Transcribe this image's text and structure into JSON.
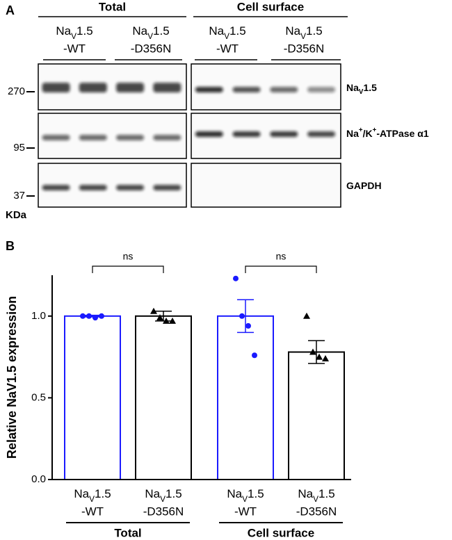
{
  "panel_labels": [
    "A",
    "B"
  ],
  "blot": {
    "groups": [
      {
        "title": "Total",
        "lanes": [
          {
            "name": [
              {
                "t": "Na"
              },
              {
                "t": "V",
                "sub": true
              },
              {
                "t": "1.5"
              }
            ],
            "variant": "-WT"
          },
          {
            "name": [
              {
                "t": "Na"
              },
              {
                "t": "V",
                "sub": true
              },
              {
                "t": "1.5"
              }
            ],
            "variant": "-D356N"
          }
        ]
      },
      {
        "title": "Cell surface",
        "lanes": [
          {
            "name": [
              {
                "t": "Na"
              },
              {
                "t": "V",
                "sub": true
              },
              {
                "t": "1.5"
              }
            ],
            "variant": "-WT"
          },
          {
            "name": [
              {
                "t": "Na"
              },
              {
                "t": "V",
                "sub": true
              },
              {
                "t": "1.5"
              }
            ],
            "variant": "-D356N"
          }
        ]
      }
    ],
    "rows": [
      [
        {
          "t": "Na"
        },
        {
          "t": "V",
          "sub": true
        },
        {
          "t": "1.5"
        }
      ],
      [
        {
          "t": "Na"
        },
        {
          "t": "+",
          "sup": true
        },
        {
          "t": "/K"
        },
        {
          "t": "+",
          "sup": true
        },
        {
          "t": "-ATPase α1"
        }
      ],
      [
        {
          "t": "GAPDH"
        }
      ]
    ],
    "markers": [
      "270",
      "95",
      "37"
    ],
    "unit": "KDa"
  },
  "chart_data": {
    "type": "bar",
    "ylabel": "Relative NaV1.5 expression",
    "categories": [
      {
        "name": [
          {
            "t": "Na"
          },
          {
            "t": "V",
            "sub": true
          },
          {
            "t": "1.5"
          }
        ],
        "variant": "-WT"
      },
      {
        "name": [
          {
            "t": "Na"
          },
          {
            "t": "V",
            "sub": true
          },
          {
            "t": "1.5"
          }
        ],
        "variant": "-D356N"
      },
      {
        "name": [
          {
            "t": "Na"
          },
          {
            "t": "V",
            "sub": true
          },
          {
            "t": "1.5"
          }
        ],
        "variant": "-WT"
      },
      {
        "name": [
          {
            "t": "Na"
          },
          {
            "t": "V",
            "sub": true
          },
          {
            "t": "1.5"
          }
        ],
        "variant": "-D356N"
      }
    ],
    "groups": [
      {
        "name": "Total",
        "annotation": "ns"
      },
      {
        "name": "Cell surface",
        "annotation": "ns"
      }
    ],
    "values": [
      1.0,
      1.0,
      1.0,
      0.78
    ],
    "errors": [
      0.005,
      0.03,
      0.1,
      0.07
    ],
    "points": [
      [
        1.0,
        1.0,
        0.99,
        1.0
      ],
      [
        1.03,
        0.99,
        0.97,
        0.97
      ],
      [
        1.23,
        1.0,
        0.94,
        0.76
      ],
      [
        1.0,
        0.78,
        0.75,
        0.74
      ]
    ],
    "colors": [
      "#1a1aff",
      "#000000",
      "#1a1aff",
      "#000000"
    ],
    "markers": [
      "circle",
      "triangle",
      "circle",
      "triangle"
    ],
    "ylim": [
      0,
      1.25
    ],
    "yticks": [
      {
        "value": 0,
        "label": "0.0"
      },
      0.5,
      {
        "value": 1,
        "label": "1.0"
      }
    ]
  }
}
